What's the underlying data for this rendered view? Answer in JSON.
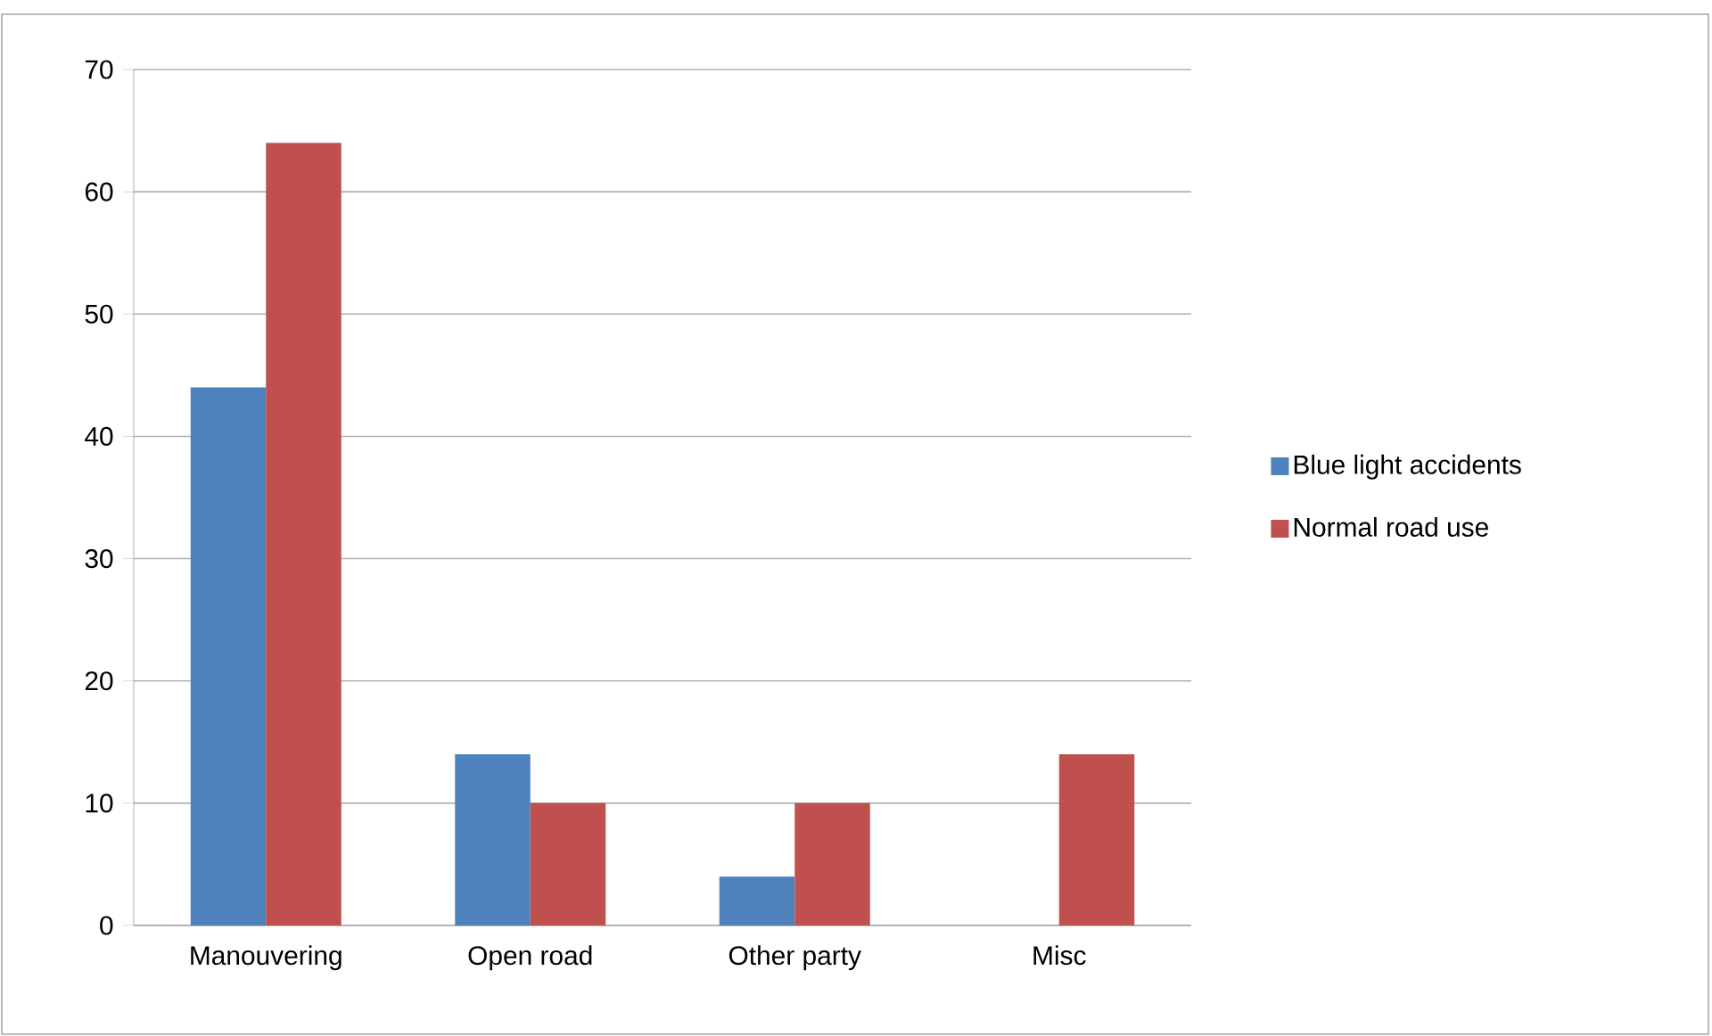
{
  "chart_data": {
    "type": "bar",
    "categories": [
      "Manouvering",
      "Open road",
      "Other party",
      "Misc"
    ],
    "series": [
      {
        "name": "Blue light accidents",
        "color": "#4f81bd",
        "values": [
          44,
          14,
          4,
          0
        ]
      },
      {
        "name": "Normal road use",
        "color": "#c0504d",
        "values": [
          64,
          10,
          10,
          14
        ]
      }
    ],
    "ylim": [
      0,
      70
    ],
    "yticks": [
      0,
      10,
      20,
      30,
      40,
      50,
      60,
      70
    ],
    "grid": "y",
    "legend": "right"
  }
}
